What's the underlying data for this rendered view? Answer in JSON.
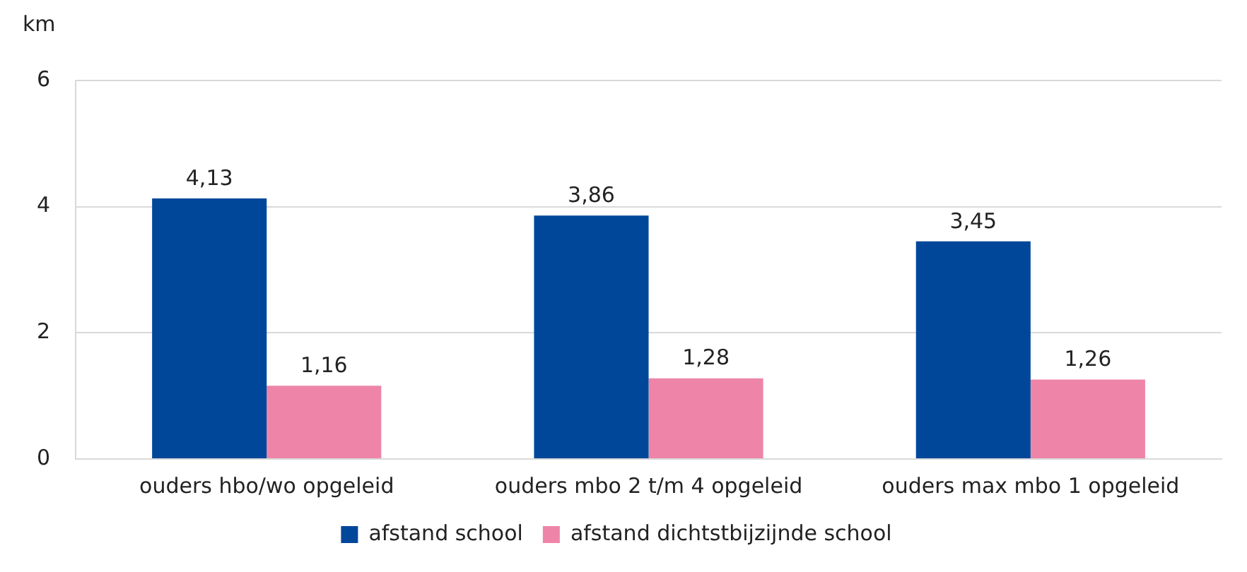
{
  "chart_data": {
    "type": "bar",
    "ylabel": "km",
    "categories": [
      "ouders hbo/wo opgeleid",
      "ouders mbo 2 t/m 4 opgeleid",
      "ouders max mbo 1 opgeleid"
    ],
    "series": [
      {
        "name": "afstand school",
        "color": "#00479a",
        "values": [
          4.13,
          3.86,
          3.45
        ],
        "value_labels": [
          "4,13",
          "3,86",
          "3,45"
        ]
      },
      {
        "name": "afstand dichtstbijzijnde school",
        "color": "#ee85a9",
        "values": [
          1.16,
          1.28,
          1.26
        ],
        "value_labels": [
          "1,16",
          "1,28",
          "1,26"
        ]
      }
    ],
    "ylim": [
      0,
      6
    ],
    "yticks": [
      0,
      2,
      4,
      6
    ],
    "grid": "y",
    "legend": "bottom"
  }
}
